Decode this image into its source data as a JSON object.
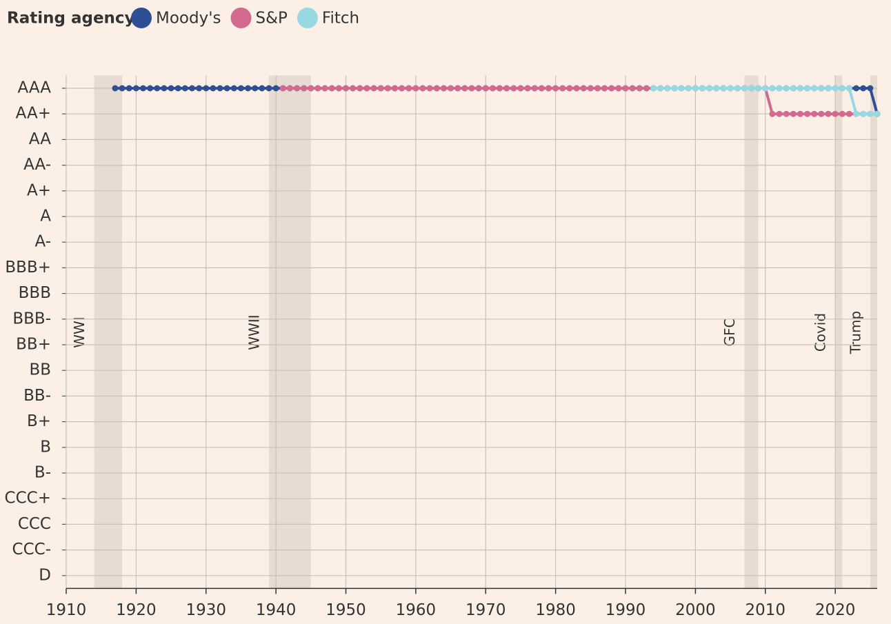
{
  "chart_data": {
    "type": "line",
    "legend_title": "Rating agency",
    "x": [
      1917,
      1918,
      1919,
      1920,
      1921,
      1922,
      1923,
      1924,
      1925,
      1926,
      1927,
      1928,
      1929,
      1930,
      1931,
      1932,
      1933,
      1934,
      1935,
      1936,
      1937,
      1938,
      1939,
      1940,
      1941,
      1942,
      1943,
      1944,
      1945,
      1946,
      1947,
      1948,
      1949,
      1950,
      1951,
      1952,
      1953,
      1954,
      1955,
      1956,
      1957,
      1958,
      1959,
      1960,
      1961,
      1962,
      1963,
      1964,
      1965,
      1966,
      1967,
      1968,
      1969,
      1970,
      1971,
      1972,
      1973,
      1974,
      1975,
      1976,
      1977,
      1978,
      1979,
      1980,
      1981,
      1982,
      1983,
      1984,
      1985,
      1986,
      1987,
      1988,
      1989,
      1990,
      1991,
      1992,
      1993,
      1994,
      1995,
      1996,
      1997,
      1998,
      1999,
      2000,
      2001,
      2002,
      2003,
      2004,
      2005,
      2006,
      2007,
      2008,
      2009,
      2010,
      2011,
      2012,
      2013,
      2014,
      2015,
      2016,
      2017,
      2018,
      2019,
      2020,
      2021,
      2022,
      2023,
      2024,
      2025,
      2026
    ],
    "series": [
      {
        "name": "Moody's",
        "color": "#2e4f94",
        "values": [
          20,
          20,
          20,
          20,
          20,
          20,
          20,
          20,
          20,
          20,
          20,
          20,
          20,
          20,
          20,
          20,
          20,
          20,
          20,
          20,
          20,
          20,
          20,
          20,
          20,
          20,
          20,
          20,
          20,
          20,
          20,
          20,
          20,
          20,
          20,
          20,
          20,
          20,
          20,
          20,
          20,
          20,
          20,
          20,
          20,
          20,
          20,
          20,
          20,
          20,
          20,
          20,
          20,
          20,
          20,
          20,
          20,
          20,
          20,
          20,
          20,
          20,
          20,
          20,
          20,
          20,
          20,
          20,
          20,
          20,
          20,
          20,
          20,
          20,
          20,
          20,
          20,
          20,
          20,
          20,
          20,
          20,
          20,
          20,
          20,
          20,
          20,
          20,
          20,
          20,
          20,
          20,
          20,
          20,
          20,
          20,
          20,
          20,
          20,
          20,
          20,
          20,
          20,
          20,
          20,
          20,
          20,
          20,
          20,
          19
        ]
      },
      {
        "name": "S&P",
        "color": "#d3698f",
        "values": [
          null,
          null,
          null,
          null,
          null,
          null,
          null,
          null,
          null,
          null,
          null,
          null,
          null,
          null,
          null,
          null,
          null,
          null,
          null,
          null,
          null,
          null,
          null,
          null,
          20,
          20,
          20,
          20,
          20,
          20,
          20,
          20,
          20,
          20,
          20,
          20,
          20,
          20,
          20,
          20,
          20,
          20,
          20,
          20,
          20,
          20,
          20,
          20,
          20,
          20,
          20,
          20,
          20,
          20,
          20,
          20,
          20,
          20,
          20,
          20,
          20,
          20,
          20,
          20,
          20,
          20,
          20,
          20,
          20,
          20,
          20,
          20,
          20,
          20,
          20,
          20,
          20,
          20,
          20,
          20,
          20,
          20,
          20,
          20,
          20,
          20,
          20,
          20,
          20,
          20,
          20,
          20,
          20,
          20,
          19,
          19,
          19,
          19,
          19,
          19,
          19,
          19,
          19,
          19,
          19,
          19,
          19,
          19,
          19,
          19
        ]
      },
      {
        "name": "Fitch",
        "color": "#96d9e3",
        "values": [
          null,
          null,
          null,
          null,
          null,
          null,
          null,
          null,
          null,
          null,
          null,
          null,
          null,
          null,
          null,
          null,
          null,
          null,
          null,
          null,
          null,
          null,
          null,
          null,
          null,
          null,
          null,
          null,
          null,
          null,
          null,
          null,
          null,
          null,
          null,
          null,
          null,
          null,
          null,
          null,
          null,
          null,
          null,
          null,
          null,
          null,
          null,
          null,
          null,
          null,
          null,
          null,
          null,
          null,
          null,
          null,
          null,
          null,
          null,
          null,
          null,
          null,
          null,
          null,
          null,
          null,
          null,
          null,
          null,
          null,
          null,
          null,
          null,
          null,
          null,
          null,
          null,
          20,
          20,
          20,
          20,
          20,
          20,
          20,
          20,
          20,
          20,
          20,
          20,
          20,
          20,
          20,
          20,
          20,
          20,
          20,
          20,
          20,
          20,
          20,
          20,
          20,
          20,
          20,
          20,
          20,
          19,
          19,
          19,
          19
        ]
      }
    ],
    "shaded_periods": [
      {
        "label": "WWI",
        "start": 1914,
        "end": 1918
      },
      {
        "label": "WWII",
        "start": 1939,
        "end": 1945
      },
      {
        "label": "GFC",
        "start": 2007,
        "end": 2009
      },
      {
        "label": "Covid",
        "start": 2020,
        "end": 2021
      },
      {
        "label": "Trump",
        "start": 2025,
        "end": 2026
      }
    ],
    "xlim": [
      1910,
      2026
    ],
    "xticks": [
      1910,
      1920,
      1930,
      1940,
      1950,
      1960,
      1970,
      1980,
      1990,
      2000,
      2010,
      2020
    ],
    "ylim": [
      0.5,
      20.5
    ],
    "yticks": [
      {
        "value": 20,
        "label": "AAA"
      },
      {
        "value": 19,
        "label": "AA+"
      },
      {
        "value": 18,
        "label": "AA"
      },
      {
        "value": 17,
        "label": "AA-"
      },
      {
        "value": 16,
        "label": "A+"
      },
      {
        "value": 15,
        "label": "A"
      },
      {
        "value": 14,
        "label": "A-"
      },
      {
        "value": 13,
        "label": "BBB+"
      },
      {
        "value": 12,
        "label": "BBB"
      },
      {
        "value": 11,
        "label": "BBB-"
      },
      {
        "value": 10,
        "label": "BB+"
      },
      {
        "value": 9,
        "label": "BB"
      },
      {
        "value": 8,
        "label": "BB-"
      },
      {
        "value": 7,
        "label": "B+"
      },
      {
        "value": 6,
        "label": "B"
      },
      {
        "value": 5,
        "label": "B-"
      },
      {
        "value": 4,
        "label": "CCC+"
      },
      {
        "value": 3,
        "label": "CCC"
      },
      {
        "value": 2,
        "label": "CCC-"
      },
      {
        "value": 1,
        "label": "D"
      }
    ],
    "grid": true
  }
}
